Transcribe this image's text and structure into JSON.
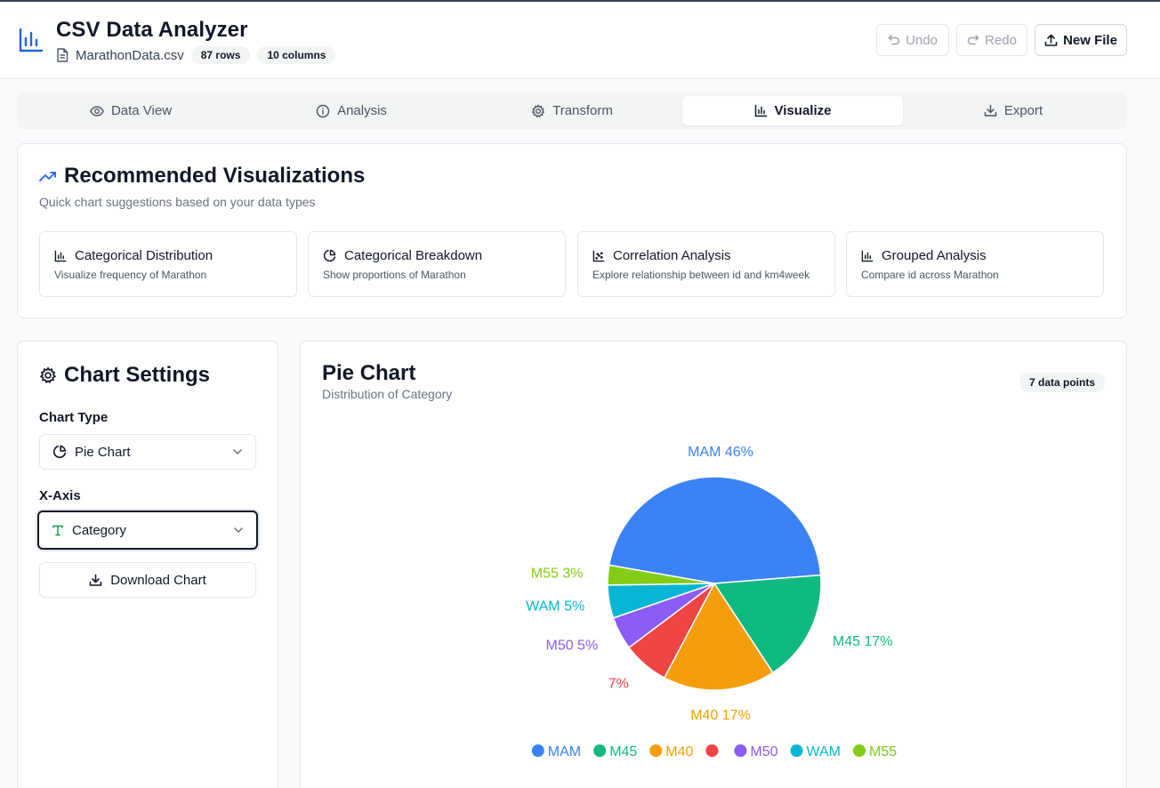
{
  "header": {
    "title": "CSV Data Analyzer",
    "file_name": "MarathonData.csv",
    "rows_badge": "87 rows",
    "columns_badge": "10 columns",
    "undo_label": "Undo",
    "redo_label": "Redo",
    "new_file_label": "New File"
  },
  "tabs": [
    {
      "label": "Data View",
      "icon": "eye-icon"
    },
    {
      "label": "Analysis",
      "icon": "info-icon"
    },
    {
      "label": "Transform",
      "icon": "gear-icon"
    },
    {
      "label": "Visualize",
      "icon": "bar-chart-icon",
      "active": true
    },
    {
      "label": "Export",
      "icon": "download-icon"
    }
  ],
  "recommended": {
    "title": "Recommended Visualizations",
    "subtitle": "Quick chart suggestions based on your data types",
    "items": [
      {
        "title": "Categorical Distribution",
        "desc": "Visualize frequency of Marathon",
        "icon": "bar-chart-icon"
      },
      {
        "title": "Categorical Breakdown",
        "desc": "Show proportions of Marathon",
        "icon": "pie-chart-icon"
      },
      {
        "title": "Correlation Analysis",
        "desc": "Explore relationship between id and km4week",
        "icon": "scatter-chart-icon"
      },
      {
        "title": "Grouped Analysis",
        "desc": "Compare id across Marathon",
        "icon": "bar-chart-icon"
      }
    ]
  },
  "settings": {
    "title": "Chart Settings",
    "chart_type_label": "Chart Type",
    "chart_type_value": "Pie Chart",
    "x_axis_label": "X-Axis",
    "x_axis_value": "Category",
    "download_label": "Download Chart"
  },
  "chart_panel": {
    "title": "Pie Chart",
    "subtitle": "Distribution of Category",
    "points_badge": "7 data points"
  },
  "chart_data": {
    "type": "pie",
    "categories": [
      "MAM",
      "M45",
      "M40",
      "",
      "M50",
      "WAM",
      "M55"
    ],
    "values": [
      46,
      17,
      17,
      7,
      5,
      5,
      3
    ],
    "labels": [
      "MAM 46%",
      "M45 17%",
      "M40 17%",
      "7%",
      "M50 5%",
      "WAM 5%",
      "M55 3%"
    ],
    "colors": [
      "#3b82f6",
      "#10b981",
      "#f59e0b",
      "#ef4444",
      "#8b5cf6",
      "#06b6d4",
      "#84cc16"
    ],
    "legend_position": "bottom",
    "title": "",
    "xlabel": "",
    "ylabel": ""
  }
}
